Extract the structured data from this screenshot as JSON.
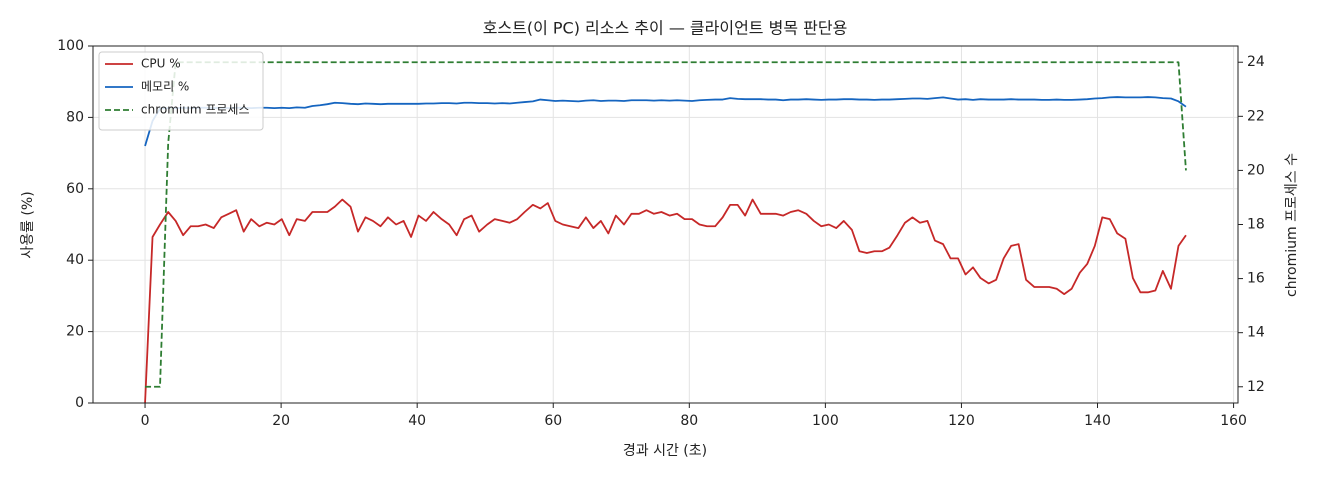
{
  "chart_data": {
    "type": "line",
    "title": "호스트(이 PC) 리소스 추이 — 클라이언트 병목 판단용",
    "x_label": "경과 시간 (초)",
    "y_label": "사용률 (%)",
    "y2_label": "chromium 프로세스 수",
    "x": [
      0,
      1.1,
      2.2,
      3.4,
      4.5,
      5.6,
      6.7,
      7.8,
      8.9,
      10.1,
      11.2,
      12.3,
      13.4,
      14.5,
      15.6,
      16.8,
      17.9,
      19.0,
      20.1,
      21.2,
      22.3,
      23.5,
      24.6,
      25.7,
      26.8,
      27.9,
      29.0,
      30.2,
      31.3,
      32.4,
      33.5,
      34.6,
      35.7,
      36.9,
      38.0,
      39.1,
      40.2,
      41.3,
      42.4,
      43.6,
      44.7,
      45.8,
      46.9,
      48.0,
      49.1,
      50.3,
      51.4,
      52.5,
      53.6,
      54.7,
      55.8,
      57.0,
      58.1,
      59.2,
      60.3,
      61.4,
      62.5,
      63.7,
      64.8,
      65.9,
      67.0,
      68.1,
      69.2,
      70.4,
      71.5,
      72.6,
      73.7,
      74.8,
      75.9,
      77.1,
      78.2,
      79.3,
      80.4,
      81.5,
      82.6,
      83.8,
      84.9,
      86.0,
      87.1,
      88.2,
      89.3,
      90.5,
      91.6,
      92.7,
      93.8,
      94.9,
      96.0,
      97.2,
      98.3,
      99.4,
      100.5,
      101.6,
      102.7,
      103.9,
      105.0,
      106.1,
      107.2,
      108.3,
      109.4,
      110.6,
      111.7,
      112.8,
      113.9,
      115.0,
      116.1,
      117.3,
      118.4,
      119.5,
      120.6,
      121.7,
      122.8,
      124.0,
      125.1,
      126.2,
      127.3,
      128.4,
      129.5,
      130.7,
      131.8,
      132.9,
      134.0,
      135.1,
      136.2,
      137.4,
      138.5,
      139.6,
      140.7,
      141.8,
      142.9,
      144.1,
      145.2,
      146.3,
      147.4,
      148.5,
      149.6,
      150.8,
      151.9,
      153.0
    ],
    "series": [
      {
        "name": "CPU %",
        "color": "#c62828",
        "values": [
          0,
          46.5,
          50,
          53.5,
          51,
          47,
          49.5,
          49.5,
          50,
          49,
          52,
          53,
          54,
          48,
          51.5,
          49.5,
          50.5,
          50,
          51.5,
          47,
          51.5,
          51,
          53.5,
          53.5,
          53.5,
          55,
          57,
          55,
          48,
          52,
          51,
          49.5,
          52,
          50,
          51,
          46.5,
          52.5,
          51,
          53.5,
          51.5,
          50,
          47,
          51.5,
          52.5,
          48,
          50,
          51.5,
          51,
          50.5,
          51.5,
          53.5,
          55.5,
          54.5,
          56,
          51,
          50,
          49.5,
          49,
          52,
          49,
          51,
          47.5,
          52.5,
          50,
          53,
          53,
          54,
          53,
          53.5,
          52.5,
          53,
          51.5,
          51.5,
          50,
          49.5,
          49.5,
          52,
          55.5,
          55.5,
          52.5,
          57,
          53,
          53,
          53,
          52.5,
          53.5,
          54,
          53,
          51,
          49.5,
          50,
          49,
          51,
          48.5,
          42.5,
          42,
          42.5,
          42.5,
          43.5,
          47,
          50.5,
          52,
          50.5,
          51,
          45.5,
          44.5,
          40.5,
          40.5,
          36,
          38,
          35,
          33.5,
          34.5,
          40.5,
          44,
          44.5,
          34.5,
          32.5,
          32.5,
          32.5,
          32,
          30.5,
          32,
          36.5,
          39,
          44,
          52,
          51.5,
          47.5,
          46,
          35,
          31,
          31,
          31.5,
          37,
          32,
          44,
          47
        ]
      },
      {
        "name": "메모리 %",
        "color": "#1565c0",
        "values": [
          72,
          79,
          82.5,
          82.6,
          82.6,
          82.7,
          82.6,
          82.7,
          82.7,
          82.6,
          82.7,
          82.6,
          82.7,
          82.7,
          82.6,
          82.7,
          82.7,
          82.6,
          82.7,
          82.6,
          82.8,
          82.7,
          83.2,
          83.4,
          83.7,
          84.1,
          84.0,
          83.8,
          83.7,
          83.9,
          83.8,
          83.7,
          83.8,
          83.8,
          83.8,
          83.8,
          83.8,
          83.9,
          83.9,
          84.0,
          84.0,
          83.9,
          84.1,
          84.1,
          84.0,
          84.0,
          83.9,
          84.0,
          83.9,
          84.1,
          84.3,
          84.5,
          85.0,
          84.8,
          84.6,
          84.7,
          84.6,
          84.5,
          84.7,
          84.8,
          84.6,
          84.7,
          84.7,
          84.6,
          84.8,
          84.8,
          84.8,
          84.7,
          84.8,
          84.7,
          84.8,
          84.7,
          84.6,
          84.8,
          84.9,
          85.0,
          85.0,
          85.4,
          85.2,
          85.1,
          85.1,
          85.1,
          85.0,
          85.0,
          84.8,
          85.0,
          85.0,
          85.1,
          85.0,
          84.9,
          85.0,
          85.0,
          85.1,
          85.1,
          85.0,
          85.0,
          84.9,
          85.0,
          85.0,
          85.1,
          85.2,
          85.3,
          85.3,
          85.2,
          85.4,
          85.6,
          85.3,
          85.0,
          85.1,
          84.9,
          85.1,
          85.0,
          85.0,
          85.0,
          85.1,
          85.0,
          85.0,
          85.0,
          84.9,
          84.9,
          85.0,
          84.9,
          84.9,
          85.0,
          85.1,
          85.3,
          85.4,
          85.6,
          85.7,
          85.6,
          85.6,
          85.6,
          85.7,
          85.6,
          85.4,
          85.3,
          84.5,
          83.0
        ]
      },
      {
        "name": "chromium 프로세스",
        "color": "#2e7d32",
        "linestyle": "dashed",
        "axis": "y2",
        "x": [
          0,
          2.2,
          3.4,
          4.5,
          151.9,
          153.0
        ],
        "values": [
          12,
          12,
          21,
          24,
          24,
          20
        ]
      }
    ],
    "xlim": [
      -7.65,
      160.65
    ],
    "xticks": [
      0,
      20,
      40,
      60,
      80,
      100,
      120,
      140,
      160
    ],
    "ylim": [
      0,
      100
    ],
    "yticks": [
      0,
      20,
      40,
      60,
      80,
      100
    ],
    "y2lim": [
      11.4,
      24.6
    ],
    "y2ticks": [
      12,
      14,
      16,
      18,
      20,
      22,
      24
    ],
    "grid": true,
    "legend": "upper-left"
  }
}
